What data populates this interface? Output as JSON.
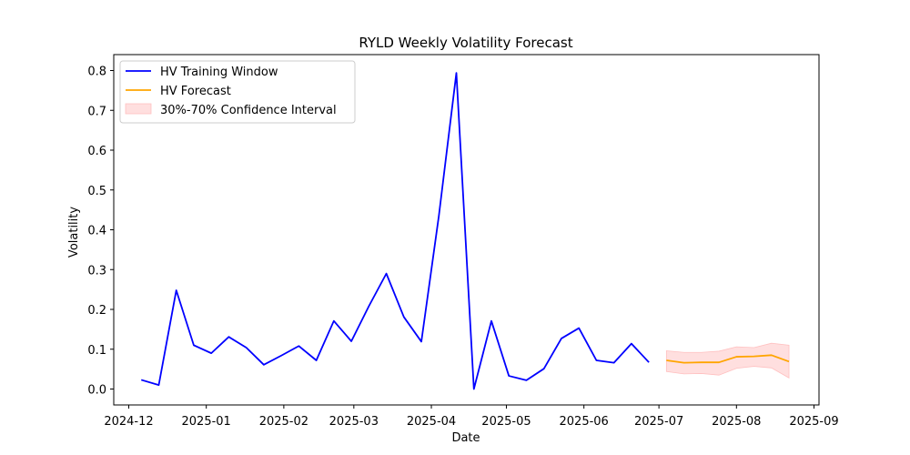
{
  "chart_data": {
    "type": "line",
    "title": "RYLD Weekly Volatility Forecast",
    "xlabel": "Date",
    "ylabel": "Volatility",
    "xlim": [
      "2024-11-25",
      "2025-09-03"
    ],
    "ylim": [
      -0.04,
      0.84
    ],
    "yticks": [
      0.0,
      0.1,
      0.2,
      0.3,
      0.4,
      0.5,
      0.6,
      0.7,
      0.8
    ],
    "ytick_labels": [
      "0.0",
      "0.1",
      "0.2",
      "0.3",
      "0.4",
      "0.5",
      "0.6",
      "0.7",
      "0.8"
    ],
    "xticks": [
      "2024-12-01",
      "2025-01-01",
      "2025-02-01",
      "2025-03-01",
      "2025-04-01",
      "2025-05-01",
      "2025-06-01",
      "2025-07-01",
      "2025-08-01",
      "2025-09-01"
    ],
    "xtick_labels": [
      "2024-12",
      "2025-01",
      "2025-02",
      "2025-03",
      "2025-04",
      "2025-05",
      "2025-06",
      "2025-07",
      "2025-08",
      "2025-09"
    ],
    "legend_position": "top-left",
    "series": [
      {
        "name": "HV Training Window",
        "color": "#0000ff",
        "kind": "line",
        "x": [
          "2024-12-06",
          "2024-12-13",
          "2024-12-20",
          "2024-12-27",
          "2025-01-03",
          "2025-01-10",
          "2025-01-17",
          "2025-01-24",
          "2025-01-31",
          "2025-02-07",
          "2025-02-14",
          "2025-02-21",
          "2025-02-28",
          "2025-03-07",
          "2025-03-14",
          "2025-03-21",
          "2025-03-28",
          "2025-04-04",
          "2025-04-11",
          "2025-04-18",
          "2025-04-25",
          "2025-05-02",
          "2025-05-09",
          "2025-05-16",
          "2025-05-23",
          "2025-05-30",
          "2025-06-06",
          "2025-06-13",
          "2025-06-20",
          "2025-06-27"
        ],
        "y": [
          0.023,
          0.01,
          0.248,
          0.11,
          0.09,
          0.131,
          0.104,
          0.061,
          0.084,
          0.108,
          0.072,
          0.171,
          0.12,
          0.208,
          0.29,
          0.181,
          0.119,
          0.435,
          0.794,
          0.0,
          0.171,
          0.033,
          0.022,
          0.051,
          0.127,
          0.153,
          0.072,
          0.066,
          0.114,
          0.067
        ]
      },
      {
        "name": "HV Forecast",
        "color": "#ffa500",
        "kind": "line",
        "x": [
          "2025-07-04",
          "2025-07-11",
          "2025-07-18",
          "2025-07-25",
          "2025-08-01",
          "2025-08-08",
          "2025-08-15",
          "2025-08-22"
        ],
        "y": [
          0.072,
          0.066,
          0.067,
          0.067,
          0.081,
          0.082,
          0.085,
          0.069
        ]
      },
      {
        "name": "30%-70% Confidence Interval",
        "color": "#ffc0c0",
        "kind": "band",
        "x": [
          "2025-07-04",
          "2025-07-11",
          "2025-07-18",
          "2025-07-25",
          "2025-08-01",
          "2025-08-08",
          "2025-08-15",
          "2025-08-22"
        ],
        "lower": [
          0.044,
          0.038,
          0.039,
          0.035,
          0.052,
          0.057,
          0.053,
          0.028
        ],
        "upper": [
          0.096,
          0.092,
          0.092,
          0.095,
          0.106,
          0.104,
          0.115,
          0.11
        ]
      }
    ]
  }
}
